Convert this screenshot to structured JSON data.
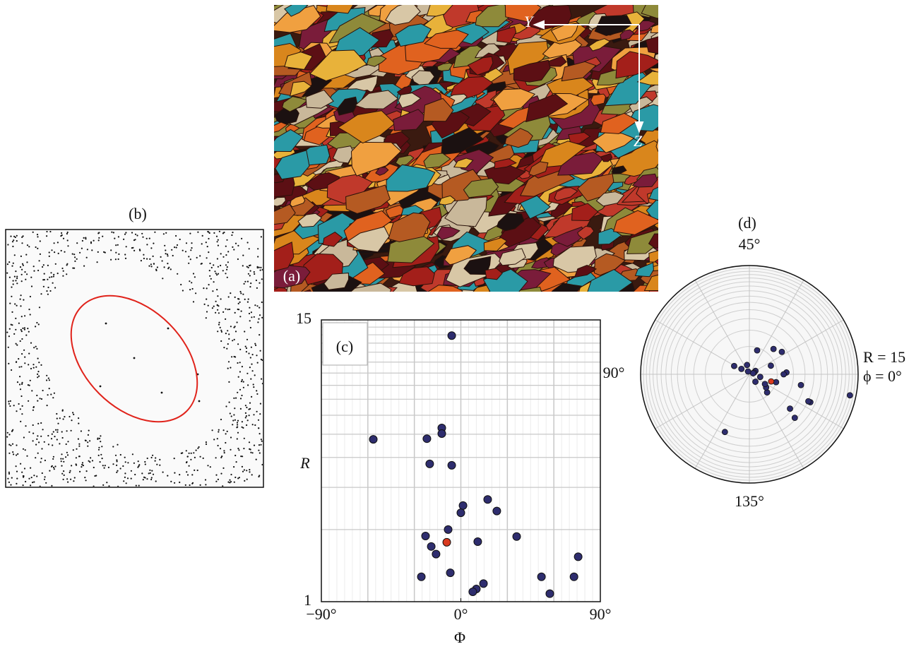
{
  "panels": {
    "a": {
      "label": "(a)",
      "axis_y": "Y",
      "axis_z": "Z"
    },
    "b": {
      "label": "(b)"
    }
  },
  "chart_data": [
    {
      "type": "scatter",
      "label": "(c)",
      "x_label": "Φ",
      "y_label": "R",
      "xlim": [
        -90,
        90
      ],
      "ylim": [
        1,
        15
      ],
      "log_y": true,
      "xticks": [
        {
          "value": -90,
          "label": "−90°"
        },
        {
          "value": 0,
          "label": "0°"
        },
        {
          "value": 90,
          "label": "90°"
        }
      ],
      "yticks": [
        1,
        15
      ],
      "xgrid": [
        -60,
        -30,
        30,
        60
      ],
      "ygrid": [
        2,
        3,
        4,
        5,
        6,
        7,
        8,
        9,
        10,
        11,
        12,
        13,
        14
      ],
      "series": [
        {
          "color": "#2e2d6e",
          "x": [
            -5.9,
            -56.5,
            -12.3,
            -12.3,
            -21.9,
            -20.1,
            -5.9,
            17.3,
            1.4,
            0,
            23.2,
            -8.2,
            -22.8,
            36,
            10.9,
            -19.1,
            -16,
            -6.8,
            -25.5,
            52,
            73,
            75.7,
            14.6,
            10,
            7.7,
            57.4
          ],
          "values": [
            12.9,
            4.76,
            5.31,
            5.03,
            4.79,
            3.76,
            3.71,
            2.67,
            2.52,
            2.35,
            2.39,
            2.0,
            1.88,
            1.87,
            1.78,
            1.7,
            1.58,
            1.32,
            1.27,
            1.27,
            1.27,
            1.54,
            1.19,
            1.13,
            1.1,
            1.08
          ]
        },
        {
          "color": "#d93a1f",
          "x": [
            -9.1
          ],
          "values": [
            1.77
          ]
        }
      ]
    },
    {
      "type": "polar",
      "label": "(d)",
      "rlim": [
        1,
        15
      ],
      "log_r": true,
      "angle_labels": [
        {
          "value": 45,
          "label": "45°"
        },
        {
          "value": 90,
          "label": "90°"
        },
        {
          "value": 135,
          "label": "135°"
        }
      ],
      "r_label": "R = 15",
      "phi_label": "ϕ = 0°",
      "rgrid": [
        2,
        3,
        4,
        5,
        6,
        7,
        8,
        9,
        10,
        11,
        12,
        13,
        14
      ],
      "phigrid": [
        0,
        15,
        30,
        45,
        60,
        75,
        90,
        105,
        120,
        135,
        150,
        165
      ]
    }
  ]
}
